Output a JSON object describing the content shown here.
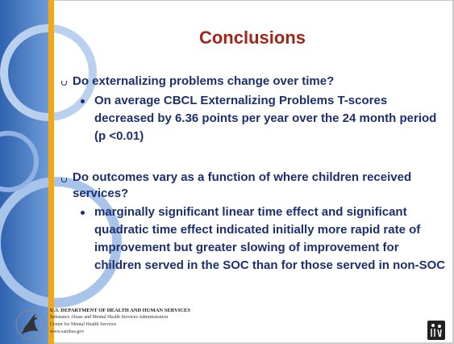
{
  "title": "Conclusions",
  "sections": [
    {
      "question": "Do externalizing problems change over time?",
      "points": [
        "On average CBCL Externalizing Problems T-scores decreased by 6.36 points per year over the 24 month period (p <0.01)"
      ]
    },
    {
      "question": "Do outcomes vary as a function of where children received services?",
      "points": [
        "marginally significant linear time effect and significant quadratic time effect indicated initially more rapid rate of improvement but greater slowing of improvement for children served in the SOC than for those served in non-SOC"
      ]
    }
  ],
  "footer": {
    "department": "U.S. DEPARTMENT OF HEALTH AND HUMAN SERVICES",
    "lines": [
      "Substance Abuse and Mental Health Services Administration",
      "Center for Mental Health Services",
      "www.samhsa.gov"
    ]
  }
}
